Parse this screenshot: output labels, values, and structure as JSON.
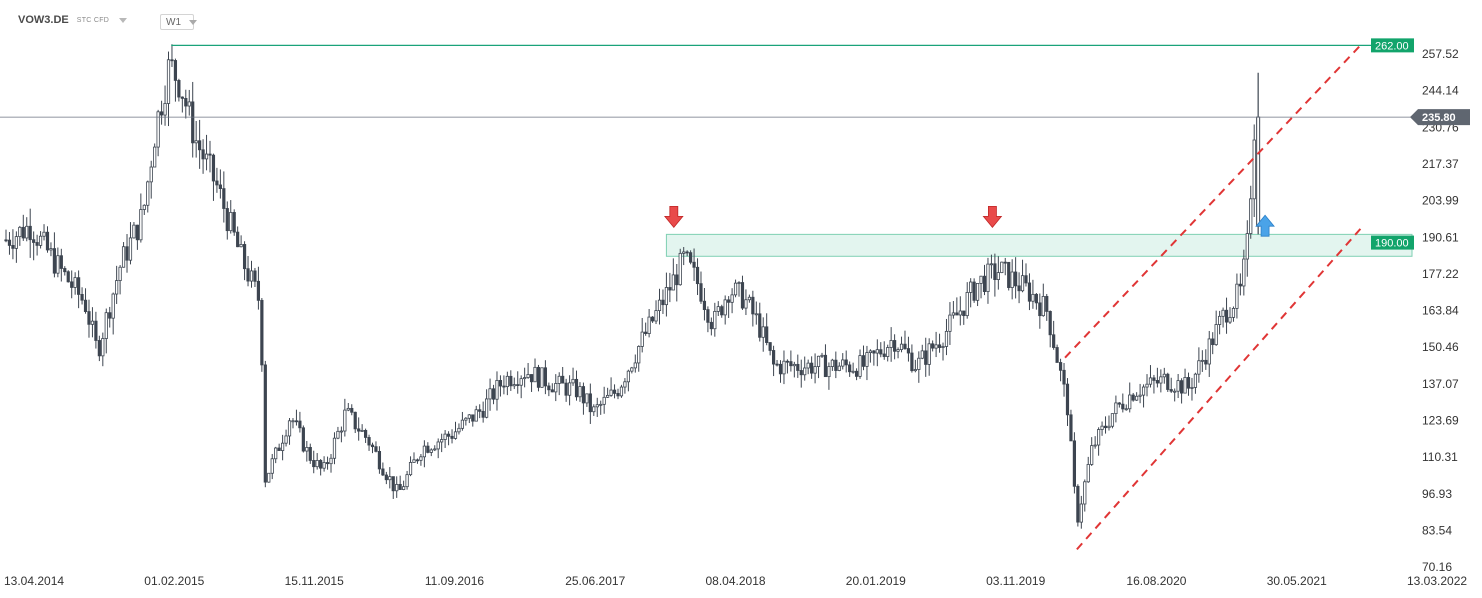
{
  "header": {
    "symbol": "VOW3.DE",
    "instrument_type": "STC CFD",
    "timeframe": "W1"
  },
  "colors": {
    "candle": "#3d4550",
    "resistance_line": "#1aa37a",
    "zone_fill": "#e3f5ef",
    "zone_border": "#7fd0b3",
    "channel": "#e03535",
    "price_line": "#6b7280",
    "tag_green": "#12a46b",
    "tag_current": "#5f6670",
    "arrow_down": "#e94a4a",
    "arrow_up": "#4aa3e8"
  },
  "chart_data": {
    "type": "candlestick",
    "y_ticks": [
      "257.52",
      "244.14",
      "230.76",
      "217.37",
      "203.99",
      "190.61",
      "177.22",
      "163.84",
      "150.46",
      "137.07",
      "123.69",
      "110.31",
      "96.93",
      "83.54",
      "70.16"
    ],
    "x_ticks": [
      "13.04.2014",
      "01.02.2015",
      "15.11.2015",
      "11.09.2016",
      "25.06.2017",
      "08.04.2018",
      "20.01.2019",
      "03.11.2019",
      "16.08.2020",
      "30.05.2021",
      "13.03.2022"
    ],
    "ylim": [
      70.16,
      262.5
    ],
    "series_close_path": [
      [
        "2014-04-13",
        191
      ],
      [
        "2014-06-01",
        196
      ],
      [
        "2014-08-01",
        180
      ],
      [
        "2014-09-20",
        168
      ],
      [
        "2014-10-15",
        150
      ],
      [
        "2014-12-01",
        182
      ],
      [
        "2015-01-15",
        200
      ],
      [
        "2015-02-10",
        232
      ],
      [
        "2015-03-10",
        255
      ],
      [
        "2015-04-01",
        248
      ],
      [
        "2015-05-01",
        228
      ],
      [
        "2015-06-15",
        210
      ],
      [
        "2015-08-01",
        185
      ],
      [
        "2015-09-10",
        168
      ],
      [
        "2015-09-20",
        104
      ],
      [
        "2015-10-10",
        112
      ],
      [
        "2015-11-10",
        127
      ],
      [
        "2015-12-15",
        113
      ],
      [
        "2016-01-15",
        106
      ],
      [
        "2016-03-01",
        128
      ],
      [
        "2016-04-15",
        118
      ],
      [
        "2016-06-15",
        98
      ],
      [
        "2016-08-01",
        115
      ],
      [
        "2016-10-01",
        120
      ],
      [
        "2016-12-01",
        129
      ],
      [
        "2017-01-15",
        140
      ],
      [
        "2017-03-01",
        143
      ],
      [
        "2017-05-01",
        138
      ],
      [
        "2017-06-15",
        136
      ],
      [
        "2017-07-15",
        128
      ],
      [
        "2017-09-01",
        136
      ],
      [
        "2017-10-15",
        152
      ],
      [
        "2017-12-01",
        168
      ],
      [
        "2018-01-15",
        184
      ],
      [
        "2018-02-15",
        174
      ],
      [
        "2018-03-15",
        160
      ],
      [
        "2018-04-15",
        173
      ],
      [
        "2018-05-15",
        170
      ],
      [
        "2018-06-15",
        160
      ],
      [
        "2018-07-15",
        145
      ],
      [
        "2018-09-01",
        145
      ],
      [
        "2018-11-01",
        145
      ],
      [
        "2019-01-15",
        145
      ],
      [
        "2019-03-15",
        155
      ],
      [
        "2019-05-01",
        145
      ],
      [
        "2019-07-01",
        158
      ],
      [
        "2019-09-01",
        175
      ],
      [
        "2019-10-15",
        180
      ],
      [
        "2019-12-15",
        172
      ],
      [
        "2020-01-20",
        165
      ],
      [
        "2020-03-01",
        130
      ],
      [
        "2020-03-20",
        88
      ],
      [
        "2020-04-20",
        115
      ],
      [
        "2020-06-01",
        128
      ],
      [
        "2020-07-15",
        136
      ],
      [
        "2020-09-15",
        140
      ],
      [
        "2020-11-01",
        137
      ],
      [
        "2020-12-15",
        153
      ],
      [
        "2021-01-15",
        165
      ],
      [
        "2021-02-15",
        172
      ],
      [
        "2021-03-01",
        190
      ],
      [
        "2021-03-15",
        235.8
      ]
    ],
    "annotations": {
      "resistance_level": 262.0,
      "support_zone": [
        185.0,
        193.0
      ],
      "current_price": 235.8,
      "channel_upper": [
        [
          "2020-02-25",
          148
        ],
        [
          "2021-10-15",
          262
        ]
      ],
      "channel_lower": [
        [
          "2020-03-20",
          78
        ],
        [
          "2021-10-15",
          195
        ]
      ],
      "signal_down": [
        "2017-12-25",
        "2019-10-01"
      ],
      "signal_up": [
        "2021-04-05"
      ]
    },
    "tags": {
      "resistance": "262.00",
      "zone": "190.00",
      "current": "235.80"
    }
  }
}
